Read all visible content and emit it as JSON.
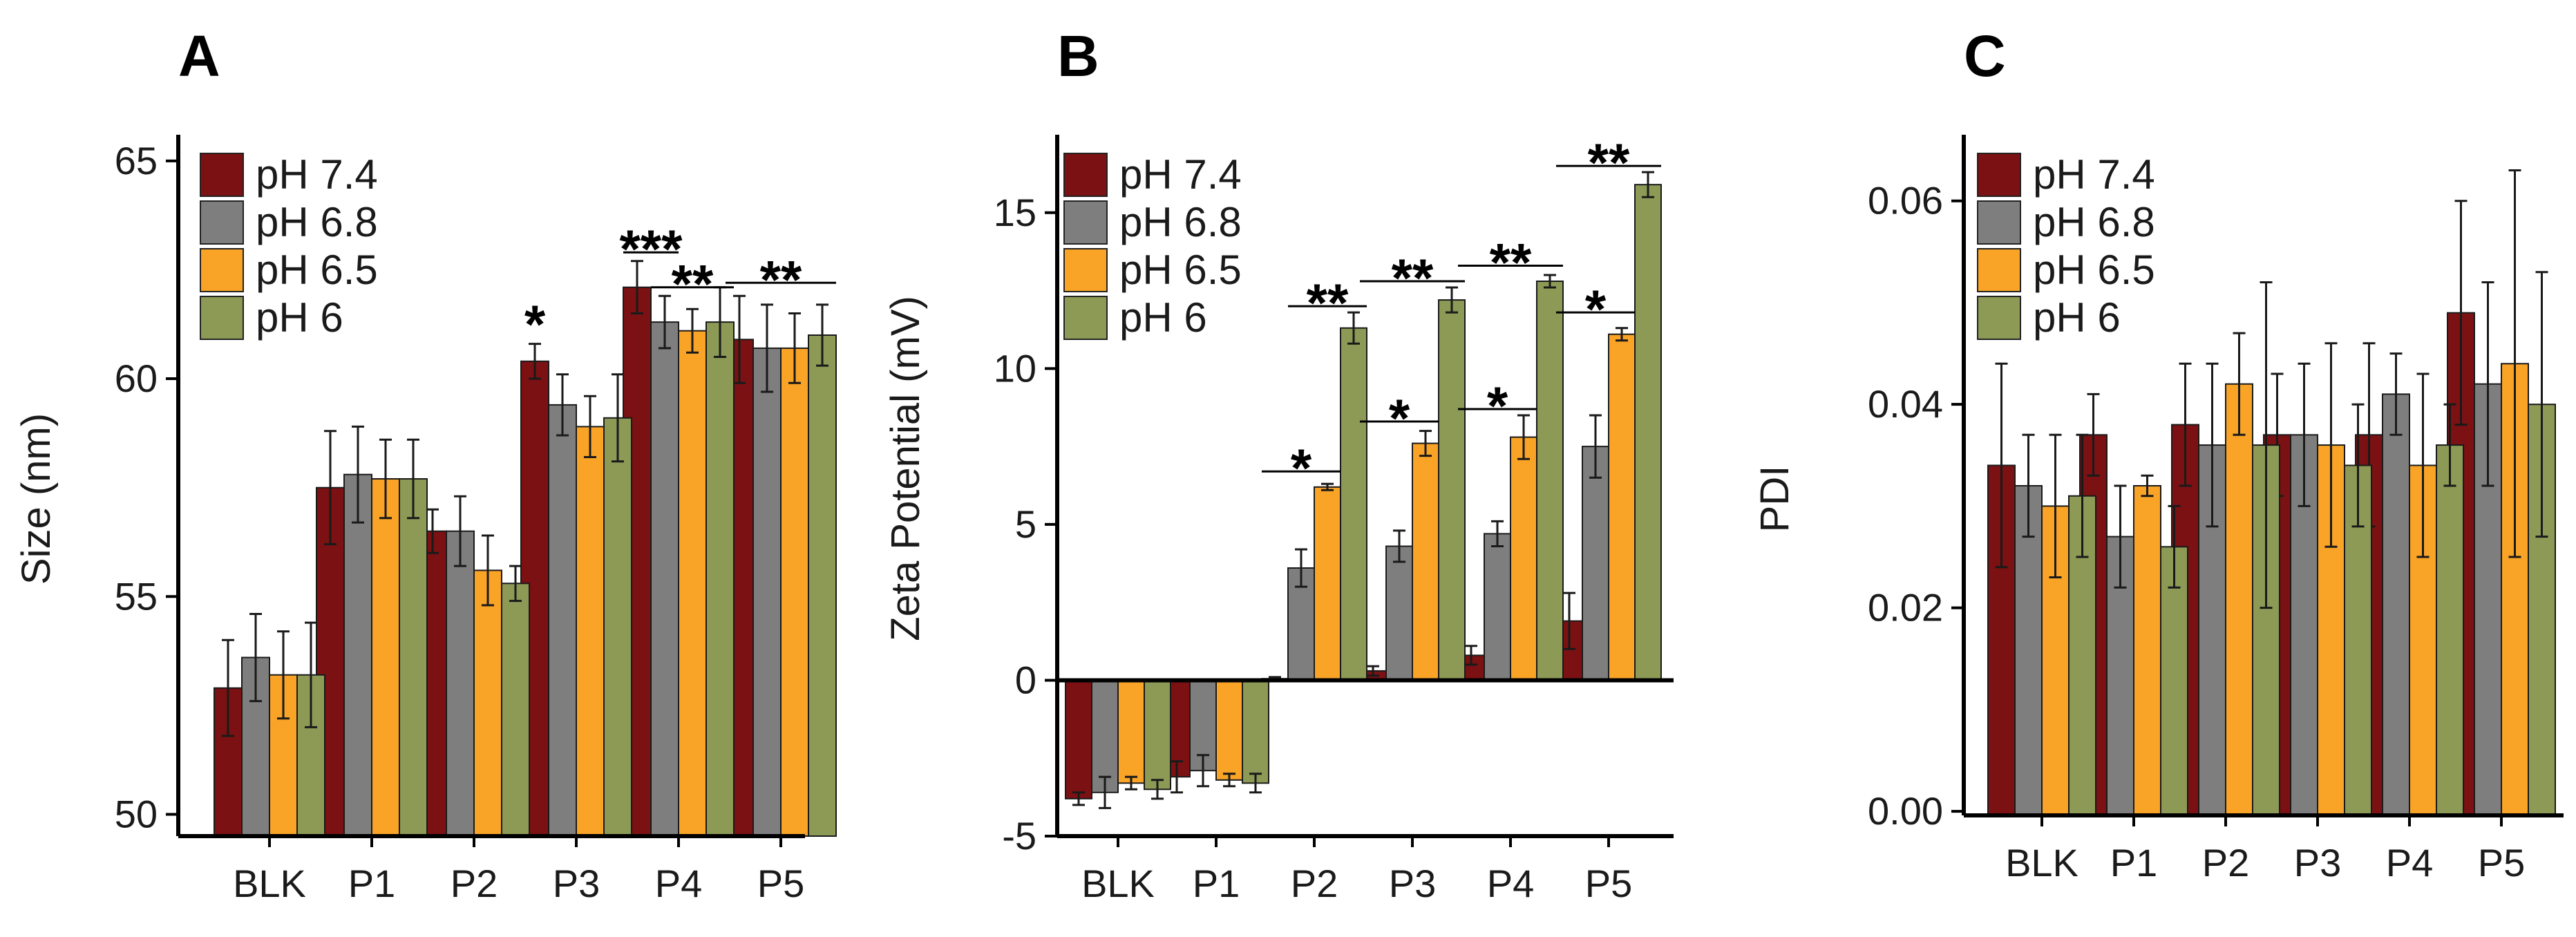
{
  "colors": {
    "pH 7.4": "#7b1113",
    "pH 6.8": "#7e7e7e",
    "pH 6.5": "#f9a427",
    "pH 6": "#8c9a56"
  },
  "chart_data": [
    {
      "panel": "A",
      "type": "bar",
      "categories": [
        "BLK",
        "P1",
        "P2",
        "P3",
        "P4",
        "P5"
      ],
      "ylabel": "Size (nm)",
      "xlabel": "",
      "ylim": [
        49.5,
        65.6
      ],
      "yticks": [
        50,
        55,
        60,
        65
      ],
      "yticklabels": [
        "50",
        "55",
        "60",
        "65"
      ],
      "legend": [
        "pH 7.4",
        "pH 6.8",
        "pH 6.5",
        "pH 6"
      ],
      "legend_position": "top-left",
      "series": [
        {
          "name": "pH 7.4",
          "values": [
            52.9,
            57.5,
            56.5,
            60.4,
            62.1,
            60.9
          ],
          "errors": [
            1.1,
            1.3,
            0.5,
            0.4,
            0.6,
            1.0
          ]
        },
        {
          "name": "pH 6.8",
          "values": [
            53.6,
            57.8,
            56.5,
            59.4,
            61.3,
            60.7
          ],
          "errors": [
            1.0,
            1.1,
            0.8,
            0.7,
            0.6,
            1.0
          ]
        },
        {
          "name": "pH 6.5",
          "values": [
            53.2,
            57.7,
            55.6,
            58.9,
            61.1,
            60.7
          ],
          "errors": [
            1.0,
            0.9,
            0.8,
            0.7,
            0.5,
            0.8
          ]
        },
        {
          "name": "pH 6",
          "values": [
            53.2,
            57.7,
            55.3,
            59.1,
            61.3,
            61.0
          ],
          "errors": [
            1.2,
            0.9,
            0.4,
            1.0,
            0.8,
            0.7
          ]
        }
      ],
      "annotations": [
        {
          "label": "*",
          "category": 3,
          "from": 0,
          "to": 0,
          "y": 61.3
        },
        {
          "label": "***",
          "category": 4,
          "from": 0,
          "to": 1,
          "y": 62.9
        },
        {
          "label": "**",
          "category": 4,
          "from": 1,
          "to": 3,
          "y": 62.1
        },
        {
          "label": "**",
          "category": 5,
          "from": 0,
          "to": 3,
          "y": 62.2
        }
      ]
    },
    {
      "panel": "B",
      "type": "bar",
      "categories": [
        "BLK",
        "P1",
        "P2",
        "P3",
        "P4",
        "P5"
      ],
      "ylabel": "Zeta Potential (mV)",
      "xlabel": "",
      "ylim": [
        -5,
        17.5
      ],
      "baseline": 0,
      "yticks": [
        -5,
        0,
        5,
        10,
        15
      ],
      "yticklabels": [
        "-5",
        "0",
        "5",
        "10",
        "15"
      ],
      "legend": [
        "pH 7.4",
        "pH 6.8",
        "pH 6.5",
        "pH 6"
      ],
      "legend_position": "top-left",
      "series": [
        {
          "name": "pH 7.4",
          "values": [
            -3.8,
            -3.1,
            0.05,
            0.3,
            0.8,
            1.9
          ],
          "errors": [
            0.2,
            0.5,
            0.05,
            0.15,
            0.3,
            0.9
          ]
        },
        {
          "name": "pH 6.8",
          "values": [
            -3.6,
            -2.9,
            3.6,
            4.3,
            4.7,
            7.5
          ],
          "errors": [
            0.5,
            0.5,
            0.6,
            0.5,
            0.4,
            1.0
          ]
        },
        {
          "name": "pH 6.5",
          "values": [
            -3.3,
            -3.2,
            6.2,
            7.6,
            7.8,
            11.1
          ],
          "errors": [
            0.2,
            0.2,
            0.1,
            0.4,
            0.7,
            0.2
          ]
        },
        {
          "name": "pH 6",
          "values": [
            -3.5,
            -3.3,
            11.3,
            12.2,
            12.8,
            15.9
          ],
          "errors": [
            0.3,
            0.3,
            0.5,
            0.4,
            0.2,
            0.4
          ]
        }
      ],
      "annotations": [
        {
          "label": "*",
          "category": 2,
          "from": 0,
          "to": 2,
          "y": 6.7
        },
        {
          "label": "**",
          "category": 2,
          "from": 1,
          "to": 3,
          "y": 12.0
        },
        {
          "label": "*",
          "category": 3,
          "from": 0,
          "to": 2,
          "y": 8.3
        },
        {
          "label": "**",
          "category": 3,
          "from": 0,
          "to": 3,
          "y": 12.8
        },
        {
          "label": "*",
          "category": 4,
          "from": 0,
          "to": 2,
          "y": 8.7
        },
        {
          "label": "**",
          "category": 4,
          "from": 0,
          "to": 3,
          "y": 13.3
        },
        {
          "label": "*",
          "category": 5,
          "from": 0,
          "to": 2,
          "y": 11.8
        },
        {
          "label": "**",
          "category": 5,
          "from": 0,
          "to": 3,
          "y": 16.5
        }
      ]
    },
    {
      "panel": "C",
      "type": "bar",
      "categories": [
        "BLK",
        "P1",
        "P2",
        "P3",
        "P4",
        "P5"
      ],
      "ylabel": "PDI",
      "xlabel": "",
      "ylim": [
        -0.0004,
        0.0665
      ],
      "yticks": [
        0.0,
        0.02,
        0.04,
        0.06
      ],
      "yticklabels": [
        "0.00",
        "0.02",
        "0.04",
        "0.06"
      ],
      "legend": [
        "pH 7.4",
        "pH 6.8",
        "pH 6.5",
        "pH 6"
      ],
      "legend_position": "top-left",
      "series": [
        {
          "name": "pH 7.4",
          "values": [
            0.034,
            0.037,
            0.038,
            0.037,
            0.037,
            0.049
          ],
          "errors": [
            0.01,
            0.004,
            0.006,
            0.006,
            0.009,
            0.011
          ]
        },
        {
          "name": "pH 6.8",
          "values": [
            0.032,
            0.027,
            0.036,
            0.037,
            0.041,
            0.042
          ],
          "errors": [
            0.005,
            0.005,
            0.008,
            0.007,
            0.004,
            0.01
          ]
        },
        {
          "name": "pH 6.5",
          "values": [
            0.03,
            0.032,
            0.042,
            0.036,
            0.034,
            0.044
          ],
          "errors": [
            0.007,
            0.001,
            0.005,
            0.01,
            0.009,
            0.019
          ]
        },
        {
          "name": "pH 6",
          "values": [
            0.031,
            0.026,
            0.036,
            0.034,
            0.036,
            0.04
          ],
          "errors": [
            0.006,
            0.004,
            0.016,
            0.006,
            0.004,
            0.013
          ]
        }
      ],
      "annotations": []
    }
  ]
}
